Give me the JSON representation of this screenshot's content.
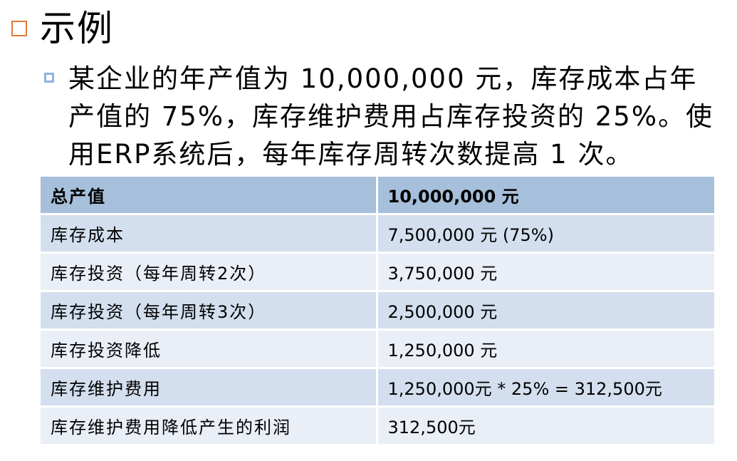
{
  "slide": {
    "title": "示例",
    "paragraph": "某企业的年产值为 10,000,000 元，库存成本占年产值的 75%，库存维护费用占库存投资的 25%。使用ERP系统后，每年库存周转次数提高 1 次。"
  },
  "table": {
    "rows": [
      {
        "label": "总产值",
        "value": "10,000,000 元"
      },
      {
        "label": "库存成本",
        "value": "7,500,000 元 (75%)"
      },
      {
        "label": "库存投资（每年周转2次）",
        "value": "3,750,000 元"
      },
      {
        "label": "库存投资（每年周转3次）",
        "value": "2,500,000 元"
      },
      {
        "label": "库存投资降低",
        "value": "1,250,000 元"
      },
      {
        "label": "库存维护费用",
        "value": "1,250,000元 * 25% = 312,500元"
      },
      {
        "label": "库存维护费用降低产生的利润",
        "value": "312,500元"
      }
    ]
  },
  "colors": {
    "title_bullet": "#e07b39",
    "sub_bullet": "#8db3e2",
    "header_row": "#a6bfda",
    "row_dark": "#d3dfee",
    "row_light": "#eaeff7"
  }
}
